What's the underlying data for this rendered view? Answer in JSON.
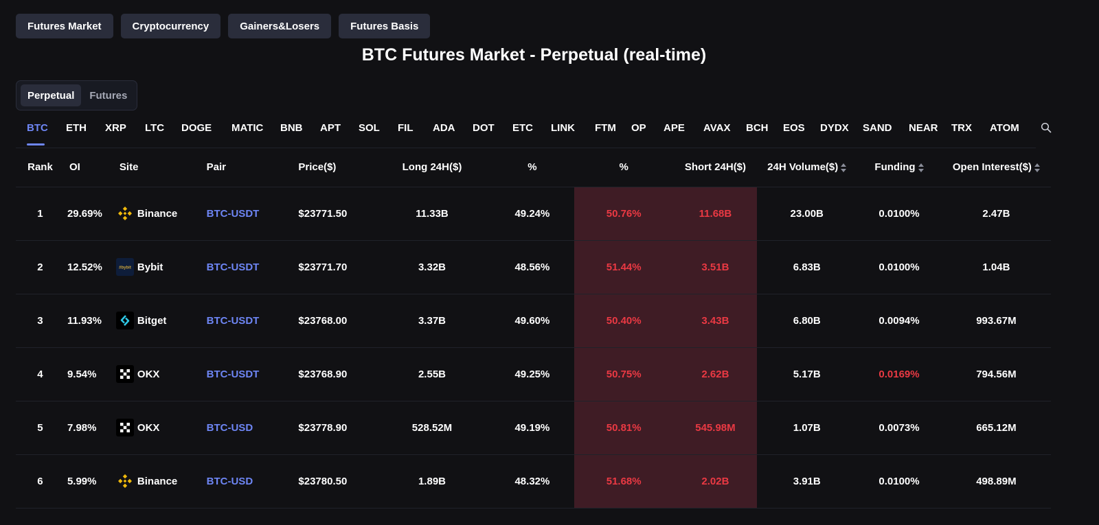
{
  "top_nav": [
    "Futures Market",
    "Cryptocurrency",
    "Gainers&Losers",
    "Futures Basis"
  ],
  "title": "BTC Futures Market - Perpetual (real-time)",
  "segment": {
    "items": [
      "Perpetual",
      "Futures"
    ],
    "active": "Perpetual"
  },
  "coins": {
    "active": "BTC",
    "items": [
      "BTC",
      "ETH",
      "XRP",
      "LTC",
      "DOGE",
      "MATIC",
      "BNB",
      "APT",
      "SOL",
      "FIL",
      "ADA",
      "DOT",
      "ETC",
      "LINK",
      "FTM",
      "OP",
      "APE",
      "AVAX",
      "BCH",
      "EOS",
      "DYDX",
      "SAND",
      "NEAR",
      "TRX",
      "ATOM"
    ]
  },
  "colors": {
    "accent": "#6e86f5",
    "negative": "#ea3943",
    "short_bg": "#3f1c25",
    "bg": "#111114",
    "button_bg": "#2a2d3b"
  },
  "table": {
    "headers": {
      "rank": "Rank",
      "oi": "OI",
      "site": "Site",
      "pair": "Pair",
      "price": "Price($)",
      "long": "Long 24H($)",
      "long_pct": "%",
      "short_pct": "%",
      "short": "Short 24H($)",
      "volume": "24H Volume($)",
      "funding": "Funding",
      "open_interest": "Open Interest($)"
    },
    "rows": [
      {
        "rank": "1",
        "oi": "29.69%",
        "site": "Binance",
        "logo": "binance",
        "pair": "BTC-USDT",
        "price": "$23771.50",
        "long": "11.33B",
        "long_pct": "49.24%",
        "short_pct": "50.76%",
        "short": "11.68B",
        "volume": "23.00B",
        "funding": "0.0100%",
        "funding_neg": false,
        "open_interest": "2.47B"
      },
      {
        "rank": "2",
        "oi": "12.52%",
        "site": "Bybit",
        "logo": "bybit",
        "pair": "BTC-USDT",
        "price": "$23771.70",
        "long": "3.32B",
        "long_pct": "48.56%",
        "short_pct": "51.44%",
        "short": "3.51B",
        "volume": "6.83B",
        "funding": "0.0100%",
        "funding_neg": false,
        "open_interest": "1.04B"
      },
      {
        "rank": "3",
        "oi": "11.93%",
        "site": "Bitget",
        "logo": "bitget",
        "pair": "BTC-USDT",
        "price": "$23768.00",
        "long": "3.37B",
        "long_pct": "49.60%",
        "short_pct": "50.40%",
        "short": "3.43B",
        "volume": "6.80B",
        "funding": "0.0094%",
        "funding_neg": false,
        "open_interest": "993.67M"
      },
      {
        "rank": "4",
        "oi": "9.54%",
        "site": "OKX",
        "logo": "okx",
        "pair": "BTC-USDT",
        "price": "$23768.90",
        "long": "2.55B",
        "long_pct": "49.25%",
        "short_pct": "50.75%",
        "short": "2.62B",
        "volume": "5.17B",
        "funding": "0.0169%",
        "funding_neg": true,
        "open_interest": "794.56M"
      },
      {
        "rank": "5",
        "oi": "7.98%",
        "site": "OKX",
        "logo": "okx",
        "pair": "BTC-USD",
        "price": "$23778.90",
        "long": "528.52M",
        "long_pct": "49.19%",
        "short_pct": "50.81%",
        "short": "545.98M",
        "volume": "1.07B",
        "funding": "0.0073%",
        "funding_neg": false,
        "open_interest": "665.12M"
      },
      {
        "rank": "6",
        "oi": "5.99%",
        "site": "Binance",
        "logo": "binance",
        "pair": "BTC-USD",
        "price": "$23780.50",
        "long": "1.89B",
        "long_pct": "48.32%",
        "short_pct": "51.68%",
        "short": "2.02B",
        "volume": "3.91B",
        "funding": "0.0100%",
        "funding_neg": false,
        "open_interest": "498.89M"
      }
    ]
  }
}
